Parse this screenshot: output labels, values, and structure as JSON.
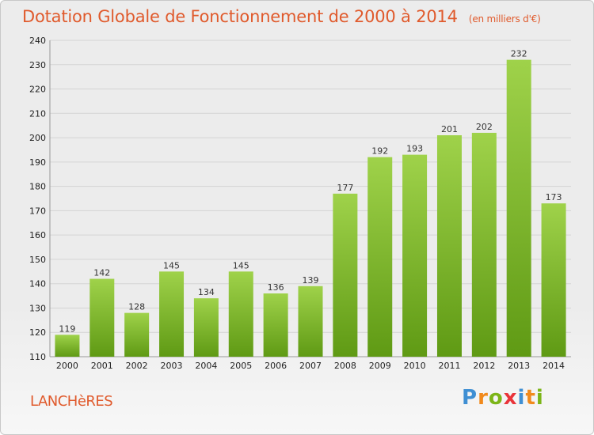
{
  "header": {
    "title": "Dotation Globale de Fonctionnement de 2000 à 2014",
    "subtitle": "(en milliers d'€)"
  },
  "commune": "LANCHèRES",
  "logo": {
    "letters": [
      "P",
      "r",
      "o",
      "x",
      "i",
      "t",
      "i"
    ],
    "colors": [
      "#3f8fd3",
      "#f18a1c",
      "#7cb518",
      "#e9343a",
      "#3f8fd3",
      "#f18a1c",
      "#7cb518"
    ]
  },
  "chart_data": {
    "type": "bar",
    "title": "Dotation Globale de Fonctionnement de 2000 à 2014",
    "subtitle": "(en milliers d'€)",
    "categories": [
      "2000",
      "2001",
      "2002",
      "2003",
      "2004",
      "2005",
      "2006",
      "2007",
      "2008",
      "2009",
      "2010",
      "2011",
      "2012",
      "2013",
      "2014"
    ],
    "values": [
      119,
      142,
      128,
      145,
      134,
      145,
      136,
      139,
      177,
      192,
      193,
      201,
      202,
      232,
      173
    ],
    "ylim": [
      110,
      240
    ],
    "yticks": [
      110,
      120,
      130,
      140,
      150,
      160,
      170,
      180,
      190,
      200,
      210,
      220,
      230,
      240
    ],
    "grid": true,
    "bar_color_top": "#9fd24a",
    "bar_color_bottom": "#5f9a14"
  }
}
